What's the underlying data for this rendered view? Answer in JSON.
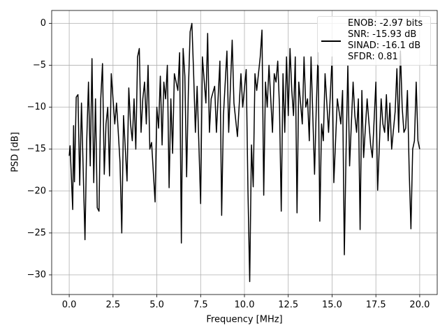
{
  "chart_data": {
    "type": "line",
    "xlabel": "Frequency [MHz]",
    "ylabel": "PSD [dB]",
    "xlim": [
      -1,
      21
    ],
    "ylim": [
      -32.34,
      1.54
    ],
    "xticks": [
      {
        "value": 0,
        "label": "0.0"
      },
      2.5,
      {
        "value": 5,
        "label": "5.0"
      },
      7.5,
      {
        "value": 10,
        "label": "10.0"
      },
      12.5,
      {
        "value": 15,
        "label": "15.0"
      },
      17.5,
      {
        "value": 20,
        "label": "20.0"
      }
    ],
    "yticks": [
      0,
      {
        "value": -5,
        "label": "−5"
      },
      {
        "value": -10,
        "label": "−10"
      },
      {
        "value": -15,
        "label": "−15"
      },
      {
        "value": -20,
        "label": "−20"
      },
      {
        "value": -25,
        "label": "−25"
      },
      {
        "value": -30,
        "label": "−30"
      }
    ],
    "grid": true,
    "legend_loc": "upper right",
    "series": [
      {
        "name": "ENOB: -2.97 bits\nSNR: -15.93 dB\nSINAD: -16.1 dB\nSFDR: 0.81",
        "color": "#000000",
        "x": [
          0,
          0.05,
          0.2,
          0.25,
          0.3,
          0.4,
          0.5,
          0.6,
          0.7,
          0.9,
          1.0,
          1.1,
          1.2,
          1.3,
          1.4,
          1.5,
          1.6,
          1.7,
          1.8,
          1.9,
          2.0,
          2.1,
          2.2,
          2.3,
          2.4,
          2.6,
          2.7,
          2.8,
          2.9,
          3.0,
          3.1,
          3.3,
          3.4,
          3.5,
          3.6,
          3.7,
          3.8,
          3.9,
          4.0,
          4.1,
          4.2,
          4.3,
          4.4,
          4.5,
          4.6,
          4.7,
          4.9,
          5.0,
          5.1,
          5.2,
          5.3,
          5.4,
          5.5,
          5.6,
          5.7,
          5.8,
          5.9,
          6.0,
          6.2,
          6.3,
          6.4,
          6.5,
          6.6,
          6.7,
          6.8,
          6.9,
          7.0,
          7.1,
          7.2,
          7.3,
          7.5,
          7.6,
          7.8,
          7.9,
          8.0,
          8.1,
          8.3,
          8.4,
          8.6,
          8.7,
          8.8,
          9.0,
          9.1,
          9.3,
          9.4,
          9.6,
          9.8,
          9.9,
          10.1,
          10.2,
          10.3,
          10.4,
          10.5,
          10.6,
          10.7,
          10.9,
          11.0,
          11.1,
          11.2,
          11.3,
          11.4,
          11.6,
          11.7,
          11.8,
          11.9,
          12.0,
          12.1,
          12.2,
          12.3,
          12.4,
          12.5,
          12.6,
          12.7,
          12.8,
          12.9,
          13.0,
          13.1,
          13.3,
          13.4,
          13.5,
          13.6,
          13.7,
          13.8,
          14.0,
          14.1,
          14.2,
          14.3,
          14.4,
          14.5,
          14.6,
          14.8,
          15.0,
          15.1,
          15.3,
          15.5,
          15.6,
          15.7,
          15.8,
          15.9,
          16.0,
          16.2,
          16.3,
          16.4,
          16.5,
          16.6,
          16.7,
          16.8,
          17.0,
          17.2,
          17.3,
          17.5,
          17.6,
          17.8,
          17.9,
          18.0,
          18.1,
          18.2,
          18.3,
          18.4,
          18.6,
          18.7,
          18.8,
          18.9,
          19.0,
          19.1,
          19.2,
          19.3,
          19.4,
          19.5,
          19.6,
          19.7,
          19.8,
          19.9,
          20.0
        ],
        "values": [
          -15.8,
          -14.6,
          -22.2,
          -12.2,
          -18.9,
          -8.8,
          -8.5,
          -19.3,
          -9.5,
          -25.8,
          -14,
          -7,
          -17,
          -4.2,
          -19,
          -9,
          -22,
          -22.4,
          -9,
          -4.8,
          -18,
          -12,
          -10,
          -18.2,
          -6,
          -12,
          -9.5,
          -13,
          -16.6,
          -25,
          -11,
          -18.8,
          -7.7,
          -12,
          -14,
          -9,
          -15,
          -4,
          -3,
          -13,
          -9,
          -7,
          -12,
          -5,
          -15,
          -14.2,
          -21.3,
          -10,
          -12.5,
          -6.3,
          -14.5,
          -7,
          -9,
          -5,
          -19.6,
          -9,
          -15.5,
          -6,
          -8,
          -3.5,
          -26.2,
          -3,
          -6.3,
          -18.3,
          -8,
          -1,
          0,
          -6,
          -13,
          -7.5,
          -21.5,
          -4,
          -9.5,
          -1.2,
          -13,
          -9,
          -7.5,
          -13,
          -4.5,
          -22.9,
          -11,
          -3.3,
          -13,
          -2,
          -9.5,
          -13.5,
          -6,
          -10,
          -5.5,
          -20,
          -30.8,
          -14.5,
          -19.5,
          -6,
          -8,
          -4,
          -0.8,
          -20.5,
          -7,
          -10,
          -5,
          -13,
          -6,
          -7,
          -4.5,
          -10,
          -22.4,
          -6,
          -13,
          -4,
          -11,
          -3,
          -8,
          -11,
          -4,
          -22.6,
          -7,
          -12,
          -4,
          -10,
          -9,
          -14,
          -4,
          -18,
          -10,
          -3.5,
          -23.6,
          -12,
          -14,
          -6,
          -13,
          -4,
          -19,
          -9,
          -12,
          -8,
          -27.6,
          -15,
          -5,
          -17,
          -7,
          -11,
          -13,
          -9,
          -24.6,
          -8,
          -16,
          -9,
          -14.5,
          -16,
          -7,
          -19.9,
          -9,
          -12,
          -13,
          -8.5,
          -14,
          -9.5,
          -15,
          -10.5,
          -5.4,
          -13,
          -3.3,
          -10,
          -13,
          -12.5,
          -8,
          -17.5,
          -24.5,
          -15,
          -14,
          -7,
          -14,
          -15
        ]
      }
    ]
  }
}
